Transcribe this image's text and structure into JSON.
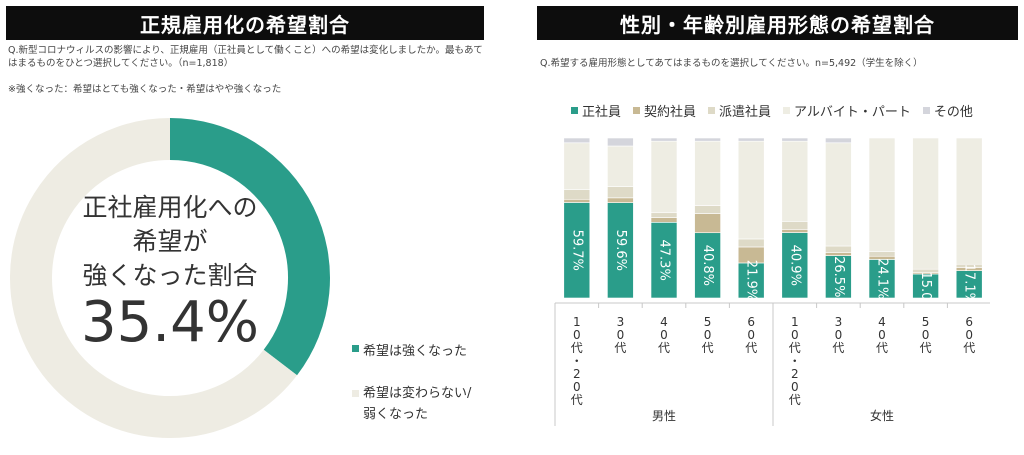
{
  "left_panel": {
    "title": "正規雇用化の希望割合",
    "question": "Q.新型コロナウィルスの影響により、正規雇用（正社員として働くこと）への希望は変化しましたか。最もあてはまるものをひとつ選択してください。（n=1,818）",
    "note": "※強くなった：希望はとても強くなった・希望はやや強くなった",
    "center_lines": [
      "正社雇用化への",
      "希望が",
      "強くなった割合"
    ],
    "center_value": "35.4%"
  },
  "right_panel": {
    "title": "性別・年齢別雇用形態の希望割合",
    "question": "Q.希望する雇用形態としてあてはまるものを選択してください。n=5,492（学生を除く）"
  },
  "chart_data": [
    {
      "type": "pie",
      "slices": [
        {
          "label": "希望は強くなった",
          "label_lines": [
            "希望は強くなった"
          ],
          "value": 35.4,
          "color": "#2a9d8a"
        },
        {
          "label": "希望は変わらない/弱くなった",
          "label_lines": [
            "希望は変わらない/",
            "弱くなった"
          ],
          "value": 64.6,
          "color": "#eeece3"
        }
      ]
    },
    {
      "type": "bar",
      "stacked": true,
      "ylim": [
        0,
        100
      ],
      "categories": [
        "10代・20代",
        "30代",
        "40代",
        "50代",
        "60代",
        "10代・20代",
        "30代",
        "40代",
        "50代",
        "60代"
      ],
      "groups": [
        {
          "label": "男性",
          "start": 0,
          "count": 5
        },
        {
          "label": "女性",
          "start": 5,
          "count": 5
        }
      ],
      "series": [
        {
          "name": "正社員",
          "color": "#2a9d8a",
          "values": [
            59.7,
            59.6,
            47.3,
            40.8,
            21.9,
            40.9,
            26.5,
            24.1,
            15.0,
            17.1
          ],
          "labels": [
            "59.7%",
            "59.6%",
            "47.3%",
            "40.8%",
            "21.9%",
            "40.9%",
            "26.5%",
            "24.1%",
            "15.0",
            "17.1%"
          ]
        },
        {
          "name": "契約社員",
          "color": "#c8b994",
          "values": [
            2,
            3,
            3,
            12,
            10,
            2,
            2,
            2,
            1,
            2
          ]
        },
        {
          "name": "派遣社員",
          "color": "#dedac7",
          "values": [
            6,
            7,
            3,
            5,
            5,
            5,
            4,
            3,
            2,
            2
          ]
        },
        {
          "name": "アルバイト・パート",
          "color": "#eeede3",
          "values": [
            29.3,
            25.4,
            44.7,
            40.2,
            61.1,
            50.1,
            64.5,
            70.9,
            82.0,
            78.9
          ]
        },
        {
          "name": "その他",
          "color": "#d4d5dc",
          "values": [
            3,
            5,
            2,
            2,
            2,
            2,
            3,
            0,
            0,
            0
          ]
        }
      ]
    }
  ]
}
